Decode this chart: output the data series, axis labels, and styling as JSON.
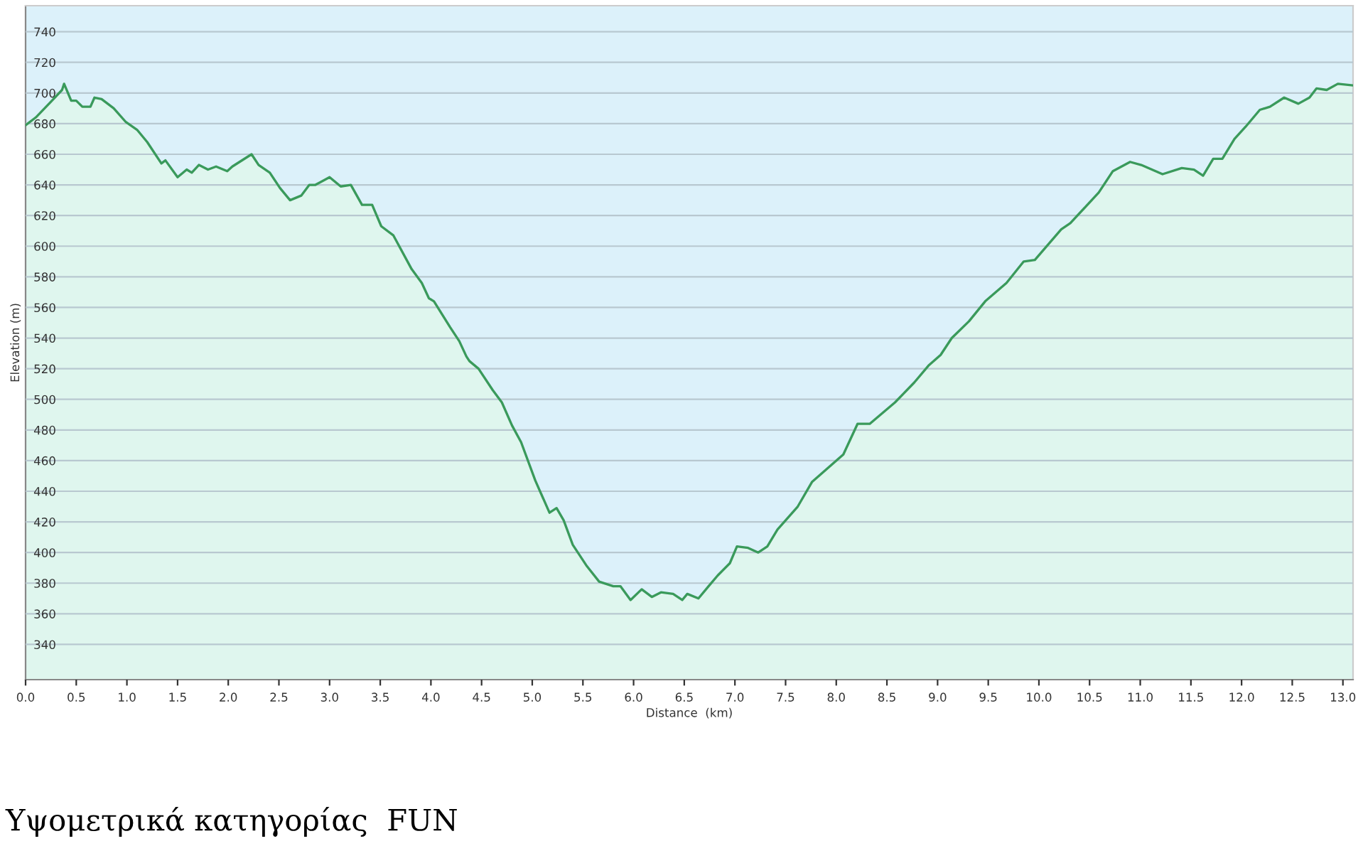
{
  "chart_data": {
    "type": "area",
    "xlabel": "Distance  (km)",
    "ylabel": "Elevation (m)",
    "annotations": [
      "Υψομετρικά κατηγορίας  FUN"
    ],
    "x": [
      0,
      0.1,
      0.26,
      0.36,
      0.38,
      0.45,
      0.5,
      0.56,
      0.64,
      0.68,
      0.75,
      0.87,
      0.99,
      1.1,
      1.2,
      1.34,
      1.38,
      1.5,
      1.59,
      1.64,
      1.71,
      1.8,
      1.88,
      1.99,
      2.04,
      2.23,
      2.3,
      2.41,
      2.51,
      2.61,
      2.72,
      2.8,
      2.86,
      3.0,
      3.11,
      3.21,
      3.32,
      3.42,
      3.51,
      3.63,
      3.81,
      3.91,
      3.98,
      4.03,
      4.19,
      4.28,
      4.35,
      4.38,
      4.47,
      4.61,
      4.7,
      4.8,
      4.89,
      5.03,
      5.17,
      5.24,
      5.31,
      5.4,
      5.54,
      5.66,
      5.8,
      5.87,
      5.97,
      6.08,
      6.18,
      6.27,
      6.39,
      6.48,
      6.53,
      6.64,
      6.74,
      6.83,
      6.95,
      7.02,
      7.13,
      7.23,
      7.32,
      7.42,
      7.62,
      7.76,
      7.88,
      8.07,
      8.21,
      8.33,
      8.58,
      8.77,
      8.91,
      9.03,
      9.14,
      9.31,
      9.47,
      9.68,
      9.85,
      9.96,
      10.22,
      10.31,
      10.59,
      10.73,
      10.9,
      11.01,
      11.22,
      11.41,
      11.53,
      11.62,
      11.72,
      11.81,
      11.93,
      12.04,
      12.18,
      12.28,
      12.42,
      12.56,
      12.67,
      12.74,
      12.84,
      12.95,
      13.09
    ],
    "series": [
      {
        "color": "#3a9a5b",
        "values": [
          679,
          684,
          695,
          702,
          706,
          695,
          695,
          691,
          691,
          697,
          696,
          690,
          681,
          676,
          668,
          654,
          656,
          645,
          650,
          648,
          653,
          650,
          652,
          649,
          652,
          660,
          653,
          648,
          638,
          630,
          633,
          640,
          640,
          645,
          639,
          640,
          627,
          627,
          613,
          607,
          585,
          576,
          566,
          564,
          547,
          538,
          528,
          525,
          520,
          506,
          498,
          483,
          472,
          447,
          426,
          429,
          421,
          405,
          391,
          381,
          378,
          378,
          369,
          376,
          371,
          374,
          373,
          369,
          373,
          370,
          378,
          385,
          393,
          404,
          403,
          400,
          404,
          415,
          430,
          446,
          453,
          464,
          484,
          484,
          498,
          511,
          522,
          529,
          540,
          551,
          564,
          576,
          590,
          591,
          611,
          615,
          635,
          649,
          655,
          653,
          647,
          651,
          650,
          646,
          657,
          657,
          670,
          678,
          689,
          691,
          697,
          693,
          697,
          703,
          702,
          706,
          705
        ]
      }
    ],
    "xlim": [
      0,
      13.1
    ],
    "ylim": [
      317,
      757
    ],
    "xticks": [
      {
        "value": 0,
        "label": "0.0"
      },
      0.5,
      {
        "value": 1,
        "label": "1.0"
      },
      1.5,
      {
        "value": 2,
        "label": "2.0"
      },
      2.5,
      {
        "value": 3,
        "label": "3.0"
      },
      3.5,
      {
        "value": 4,
        "label": "4.0"
      },
      4.5,
      {
        "value": 5,
        "label": "5.0"
      },
      5.5,
      {
        "value": 6,
        "label": "6.0"
      },
      6.5,
      {
        "value": 7,
        "label": "7.0"
      },
      7.5,
      {
        "value": 8,
        "label": "8.0"
      },
      8.5,
      {
        "value": 9,
        "label": "9.0"
      },
      9.5,
      {
        "value": 10,
        "label": "10.0"
      },
      10.5,
      {
        "value": 11,
        "label": "11.0"
      },
      11.5,
      {
        "value": 12,
        "label": "12.0"
      },
      12.5,
      {
        "value": 13,
        "label": "13.0"
      }
    ],
    "yticks": [
      340,
      360,
      380,
      400,
      420,
      440,
      460,
      480,
      500,
      520,
      540,
      560,
      580,
      600,
      620,
      640,
      660,
      680,
      700,
      720,
      740
    ],
    "grid": "y"
  }
}
